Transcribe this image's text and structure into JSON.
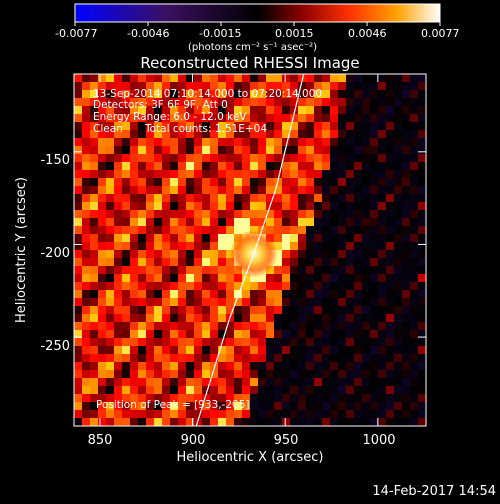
{
  "colorbar": {
    "ticks": [
      "-0.0077",
      "-0.0046",
      "-0.0015",
      "0.0015",
      "0.0046",
      "0.0077"
    ],
    "unit_label": "(photons cm⁻² s⁻¹ asec⁻²)",
    "colormap": "hot-with-blue-negatives"
  },
  "chart_data": {
    "type": "heatmap",
    "title": "Reconstructed RHESSI Image",
    "xlabel": "Heliocentric X (arcsec)",
    "ylabel": "Heliocentric Y (arcsec)",
    "xlim": [
      836,
      1026
    ],
    "ylim": [
      -298,
      -108
    ],
    "x_ticks": [
      "850",
      "900",
      "950",
      "1000"
    ],
    "y_ticks": [
      "-150",
      "-200",
      "-250"
    ],
    "color_range": [
      -0.0077,
      0.0077
    ],
    "annotations": {
      "time": "13-Sep-2014 07:10:14.000 to 07:20:14.000",
      "detectors": "Detectors: 3F 6F 9F, Att 0",
      "energy": "Energy Range: 6.0 - 12.0 keV",
      "algorithm": "Clean",
      "counts": "Total counts: 1.51E+04",
      "peak": "Position of Peak = [933,-205]"
    },
    "peak": {
      "x": 933,
      "y": -205
    },
    "limb_points": [
      [
        902,
        -298
      ],
      [
        920,
        -240
      ],
      [
        933,
        -205
      ],
      [
        945,
        -170
      ],
      [
        960,
        -108
      ]
    ]
  },
  "footer": {
    "timestamp": "14-Feb-2017 14:54"
  }
}
